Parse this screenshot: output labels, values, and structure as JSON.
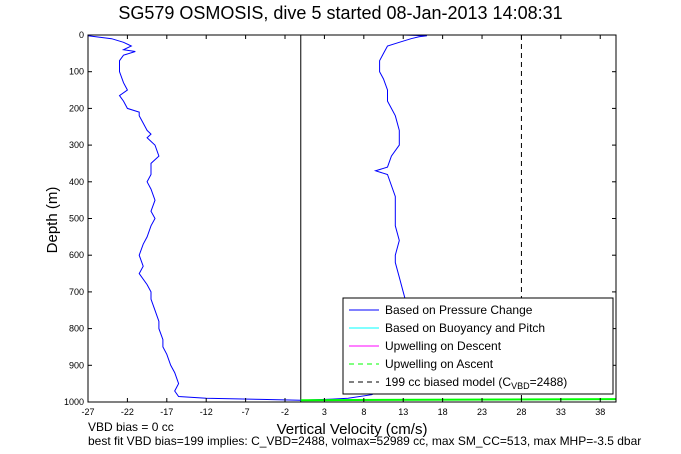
{
  "chart_data": {
    "type": "line",
    "title": "SG579 OSMOSIS, dive 5 started 08-Jan-2013 14:08:31",
    "xlabel": "Vertical Velocity (cm/s)",
    "ylabel": "Depth (m)",
    "xlim": [
      -27,
      40
    ],
    "ylim": [
      0,
      1000
    ],
    "y_reversed": true,
    "grid": false,
    "x_ticks": [
      "-27",
      "-22",
      "-17",
      "-12",
      "-7",
      "-2",
      "3",
      "8",
      "13",
      "18",
      "23",
      "28",
      "33",
      "38"
    ],
    "y_ticks": [
      "0",
      "100",
      "200",
      "300",
      "400",
      "500",
      "600",
      "700",
      "800",
      "900",
      "1000"
    ],
    "legend_position": "bottom-right",
    "legend": [
      {
        "label": "Based on Pressure Change",
        "color": "#0000ff",
        "style": "solid"
      },
      {
        "label": "Based on Buoyancy and Pitch",
        "color": "#00ffff",
        "style": "solid"
      },
      {
        "label": "Upwelling on Descent",
        "color": "#ff00ff",
        "style": "solid"
      },
      {
        "label": "Upwelling on Ascent",
        "color": "#00ff00",
        "style": "dashed"
      },
      {
        "label": "199 cc biased model (C",
        "sub": "VBD",
        "tail": "=2488)",
        "color": "#000000",
        "style": "dashed"
      }
    ],
    "series": [
      {
        "name": "Based on Pressure Change (descent)",
        "color": "#0000ff",
        "points": [
          [
            -26.5,
            0
          ],
          [
            -27,
            2
          ],
          [
            -26,
            5
          ],
          [
            -24,
            10
          ],
          [
            -22.5,
            20
          ],
          [
            -21.5,
            30
          ],
          [
            -22.5,
            40
          ],
          [
            -21,
            45
          ],
          [
            -22.5,
            55
          ],
          [
            -23,
            70
          ],
          [
            -23,
            100
          ],
          [
            -22.5,
            130
          ],
          [
            -22,
            150
          ],
          [
            -23,
            165
          ],
          [
            -22.5,
            180
          ],
          [
            -22,
            200
          ],
          [
            -20.5,
            210
          ],
          [
            -20.5,
            220
          ],
          [
            -20,
            240
          ],
          [
            -19.5,
            260
          ],
          [
            -19,
            270
          ],
          [
            -19.5,
            280
          ],
          [
            -18.5,
            300
          ],
          [
            -18,
            330
          ],
          [
            -19,
            350
          ],
          [
            -19,
            380
          ],
          [
            -19.5,
            400
          ],
          [
            -19,
            420
          ],
          [
            -18.5,
            450
          ],
          [
            -19,
            480
          ],
          [
            -18.5,
            500
          ],
          [
            -19,
            520
          ],
          [
            -19.5,
            550
          ],
          [
            -20,
            570
          ],
          [
            -20.5,
            600
          ],
          [
            -20,
            630
          ],
          [
            -20.5,
            650
          ],
          [
            -19.5,
            680
          ],
          [
            -19,
            700
          ],
          [
            -19,
            720
          ],
          [
            -18.5,
            750
          ],
          [
            -18,
            780
          ],
          [
            -18,
            800
          ],
          [
            -17.5,
            830
          ],
          [
            -17.5,
            850
          ],
          [
            -17,
            870
          ],
          [
            -16.5,
            900
          ],
          [
            -16,
            920
          ],
          [
            -15.5,
            950
          ],
          [
            -16,
            970
          ],
          [
            -15.5,
            985
          ],
          [
            -12,
            990
          ],
          [
            -5,
            993
          ],
          [
            0,
            995
          ]
        ]
      },
      {
        "name": "Based on Pressure Change (ascent)",
        "color": "#0000ff",
        "points": [
          [
            0,
            995
          ],
          [
            4,
            992
          ],
          [
            6,
            990
          ],
          [
            9,
            980
          ],
          [
            11,
            960
          ],
          [
            12,
            940
          ],
          [
            12.5,
            900
          ],
          [
            13,
            860
          ],
          [
            13.5,
            820
          ],
          [
            13.5,
            780
          ],
          [
            13.5,
            740
          ],
          [
            13,
            700
          ],
          [
            12.5,
            660
          ],
          [
            12,
            620
          ],
          [
            12,
            600
          ],
          [
            12.5,
            560
          ],
          [
            12,
            520
          ],
          [
            12,
            480
          ],
          [
            12,
            440
          ],
          [
            11.5,
            410
          ],
          [
            11,
            380
          ],
          [
            9.5,
            370
          ],
          [
            11,
            360
          ],
          [
            11.5,
            330
          ],
          [
            12.5,
            300
          ],
          [
            12.5,
            260
          ],
          [
            12,
            220
          ],
          [
            11.5,
            200
          ],
          [
            11,
            180
          ],
          [
            11,
            150
          ],
          [
            10.5,
            120
          ],
          [
            10,
            100
          ],
          [
            10,
            70
          ],
          [
            10.5,
            50
          ],
          [
            11,
            30
          ],
          [
            12.5,
            20
          ],
          [
            14,
            10
          ],
          [
            15,
            5
          ],
          [
            16,
            2
          ],
          [
            13,
            0
          ]
        ]
      },
      {
        "name": "Upwelling on Ascent",
        "color": "#00ff00",
        "points": [
          [
            0,
            995
          ],
          [
            40,
            992
          ]
        ]
      }
    ],
    "vertical_lines": [
      {
        "x": 0,
        "color": "#000000",
        "style": "solid"
      },
      {
        "x": 28,
        "color": "#000000",
        "style": "dashed"
      }
    ]
  },
  "notes": {
    "line1": "VBD bias = 0 cc",
    "line2": "best fit VBD bias=199 implies: C_VBD=2488, volmax=52989 cc, max SM_CC=513, max MHP=-3.5 dbar"
  }
}
